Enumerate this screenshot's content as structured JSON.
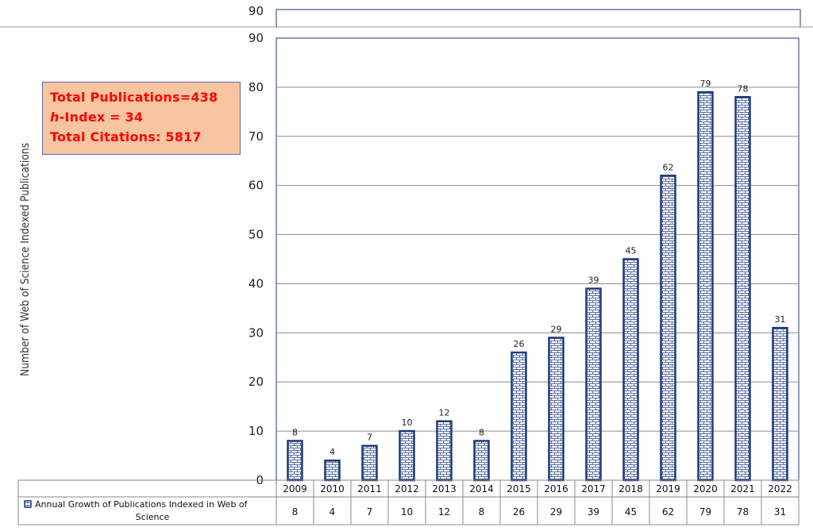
{
  "chart_data": {
    "type": "bar",
    "ylabel": "Number of Web of Science Indexed Publications",
    "ylim": [
      0,
      90
    ],
    "yticks": [
      "0",
      "10",
      "20",
      "30",
      "40",
      "50",
      "60",
      "70",
      "80",
      "90"
    ],
    "categories": [
      "2009",
      "2010",
      "2011",
      "2012",
      "2013",
      "2014",
      "2015",
      "2016",
      "2017",
      "2018",
      "2019",
      "2020",
      "2021",
      "2022"
    ],
    "series": [
      {
        "name": "Annual Growth of Publications Indexed in Web of Science",
        "values": [
          8,
          4,
          7,
          10,
          12,
          8,
          26,
          29,
          39,
          45,
          62,
          79,
          78,
          31
        ]
      }
    ],
    "data_labels": true,
    "grid": true,
    "legend": "data-table-left",
    "bar_color": "#1f3a7a",
    "bar_pattern": "brick"
  },
  "top_fragment": {
    "tick_label": "90"
  },
  "annotation": {
    "line1": "Total Publications=438",
    "line2_italic": "h",
    "line2_rest": "-Index = 34",
    "line3": "Total Citations:  5817"
  },
  "table": {
    "legend_label": "Annual Growth of Publications Indexed in Web of Science",
    "legend_line1": "Annual Growth of Publications Indexed in Web of",
    "legend_line2": "Science"
  },
  "colors": {
    "bar_outline": "#1f3a7a",
    "annotation_bg": "#f8c5a2",
    "annotation_text": "#ff0000",
    "grid": "#8c8c8c"
  }
}
